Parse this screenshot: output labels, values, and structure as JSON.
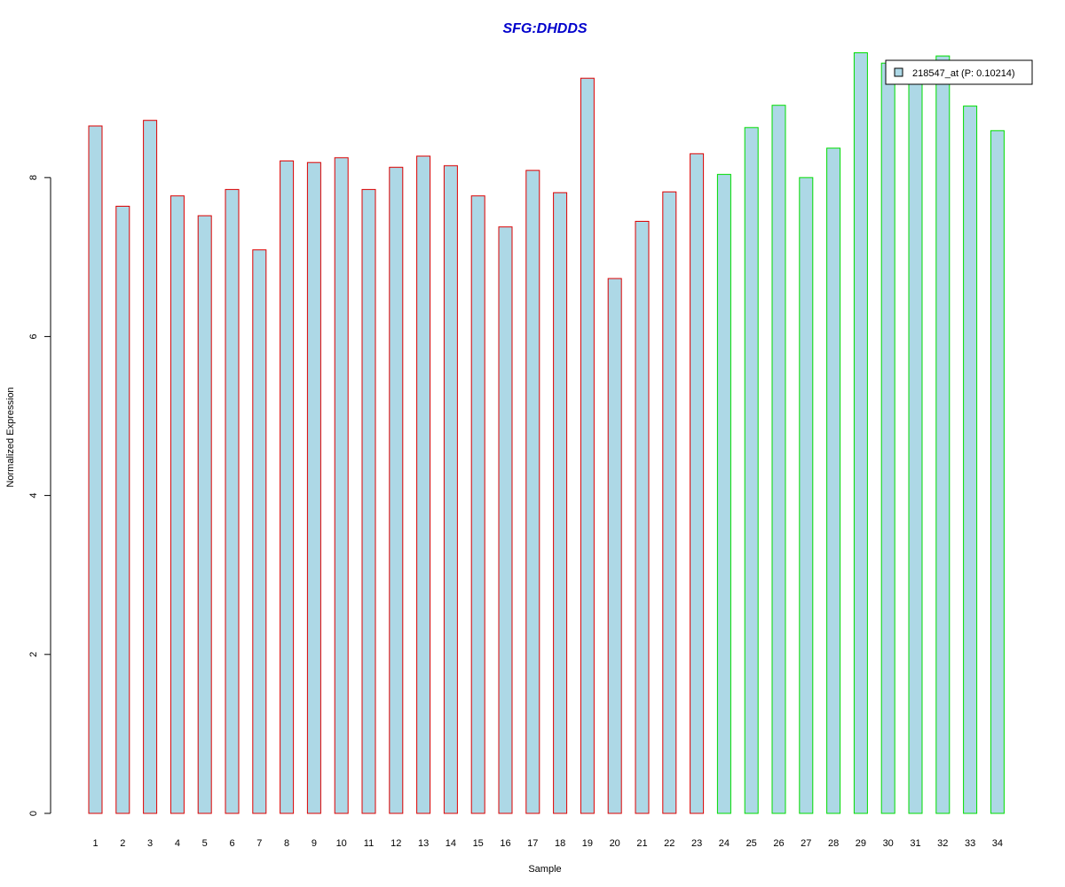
{
  "chart_data": {
    "type": "bar",
    "title": "SFG:DHDDS",
    "xlabel": "Sample",
    "ylabel": "Normalized Expression",
    "ylim": [
      0,
      9.6
    ],
    "yticks": [
      0,
      2,
      4,
      6,
      8
    ],
    "grid": false,
    "legend": {
      "position": "top-right",
      "entries": [
        "218547_at (P: 0.10214)"
      ]
    },
    "categories": [
      "1",
      "2",
      "3",
      "4",
      "5",
      "6",
      "7",
      "8",
      "9",
      "10",
      "11",
      "12",
      "13",
      "14",
      "15",
      "16",
      "17",
      "18",
      "19",
      "20",
      "21",
      "22",
      "23",
      "24",
      "25",
      "26",
      "27",
      "28",
      "29",
      "30",
      "31",
      "32",
      "33",
      "34"
    ],
    "series": [
      {
        "name": "218547_at (P: 0.10214)",
        "values": [
          8.65,
          7.64,
          8.72,
          7.77,
          7.52,
          7.85,
          7.09,
          8.21,
          8.19,
          8.25,
          7.85,
          8.13,
          8.27,
          8.15,
          7.77,
          7.38,
          8.09,
          7.81,
          9.25,
          6.73,
          7.45,
          7.82,
          8.3,
          8.04,
          8.63,
          8.91,
          8.0,
          8.37,
          9.57,
          9.44,
          9.3,
          9.53,
          8.9,
          8.59
        ],
        "group": [
          "A",
          "A",
          "A",
          "A",
          "A",
          "A",
          "A",
          "A",
          "A",
          "A",
          "A",
          "A",
          "A",
          "A",
          "A",
          "A",
          "A",
          "A",
          "A",
          "A",
          "A",
          "A",
          "A",
          "B",
          "B",
          "B",
          "B",
          "B",
          "B",
          "B",
          "B",
          "B",
          "B",
          "B"
        ]
      }
    ],
    "colors": {
      "title": "#0000cc",
      "bar_fill": "#add8e6",
      "group_A_border": "#dd0000",
      "group_B_border": "#00dd00",
      "axis": "#000000"
    }
  }
}
